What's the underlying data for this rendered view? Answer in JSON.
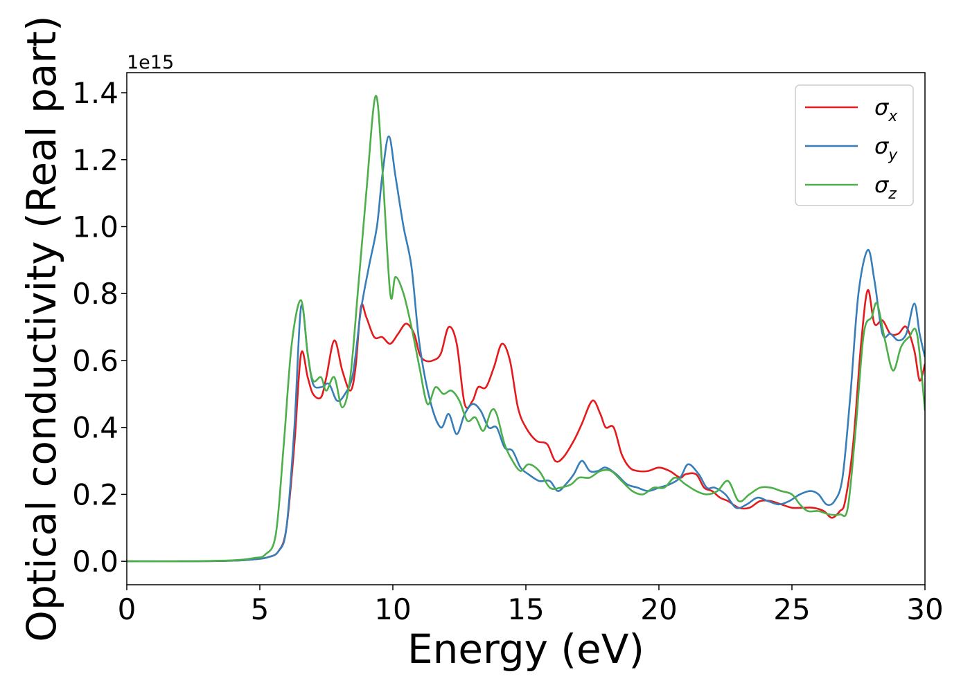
{
  "chart_data": {
    "type": "line",
    "title": "",
    "xlabel": "Energy (eV)",
    "ylabel": "Optical conductivity (Real part)",
    "y_offset_text": "1e15",
    "xlim": [
      0,
      30
    ],
    "ylim": [
      -0.07,
      1.46
    ],
    "xticks": [
      0,
      5,
      10,
      15,
      20,
      25,
      30
    ],
    "yticks": [
      0.0,
      0.2,
      0.4,
      0.6,
      0.8,
      1.0,
      1.2,
      1.4
    ],
    "ytick_labels": [
      "0.0",
      "0.2",
      "0.4",
      "0.6",
      "0.8",
      "1.0",
      "1.2",
      "1.4"
    ],
    "grid": false,
    "legend_position": "top-right",
    "series": [
      {
        "name": "σ",
        "subscript": "x",
        "color": "#e41a1c",
        "x": [
          0,
          2,
          4,
          4.8,
          5.3,
          5.7,
          6.0,
          6.3,
          6.55,
          6.8,
          7.0,
          7.3,
          7.5,
          7.8,
          8.1,
          8.4,
          8.6,
          8.8,
          9.0,
          9.3,
          9.6,
          9.9,
          10.2,
          10.5,
          10.8,
          11.0,
          11.2,
          11.5,
          11.8,
          12.1,
          12.4,
          12.7,
          13.0,
          13.2,
          13.5,
          13.8,
          14.1,
          14.4,
          14.7,
          15.0,
          15.4,
          15.8,
          16.1,
          16.4,
          16.8,
          17.1,
          17.5,
          17.8,
          18.0,
          18.3,
          18.6,
          18.9,
          19.2,
          19.6,
          20.0,
          20.4,
          20.8,
          21.0,
          21.4,
          21.7,
          22.0,
          22.3,
          22.6,
          23.0,
          23.4,
          23.8,
          24.2,
          24.6,
          25.0,
          25.4,
          25.8,
          26.2,
          26.5,
          26.8,
          27.0,
          27.3,
          27.6,
          27.85,
          28.1,
          28.4,
          28.7,
          29.0,
          29.3,
          29.6,
          29.8,
          30.0
        ],
        "values": [
          0,
          0.0,
          0.002,
          0.006,
          0.012,
          0.03,
          0.1,
          0.35,
          0.62,
          0.55,
          0.5,
          0.49,
          0.55,
          0.66,
          0.57,
          0.51,
          0.58,
          0.76,
          0.73,
          0.67,
          0.67,
          0.65,
          0.68,
          0.71,
          0.68,
          0.62,
          0.6,
          0.6,
          0.62,
          0.7,
          0.65,
          0.47,
          0.48,
          0.52,
          0.52,
          0.58,
          0.65,
          0.6,
          0.46,
          0.4,
          0.36,
          0.35,
          0.3,
          0.31,
          0.36,
          0.41,
          0.48,
          0.44,
          0.4,
          0.4,
          0.32,
          0.28,
          0.27,
          0.27,
          0.28,
          0.27,
          0.25,
          0.26,
          0.26,
          0.22,
          0.21,
          0.19,
          0.18,
          0.16,
          0.16,
          0.18,
          0.18,
          0.17,
          0.16,
          0.16,
          0.16,
          0.15,
          0.13,
          0.15,
          0.18,
          0.35,
          0.65,
          0.81,
          0.71,
          0.72,
          0.68,
          0.68,
          0.7,
          0.63,
          0.54,
          0.59
        ]
      },
      {
        "name": "σ",
        "subscript": "y",
        "color": "#377eb8",
        "x": [
          0,
          2,
          4,
          4.8,
          5.3,
          5.7,
          6.0,
          6.3,
          6.55,
          6.8,
          7.0,
          7.3,
          7.6,
          7.9,
          8.2,
          8.5,
          8.8,
          9.1,
          9.4,
          9.6,
          9.85,
          10.1,
          10.4,
          10.7,
          11.0,
          11.4,
          11.8,
          12.1,
          12.4,
          12.7,
          13.0,
          13.3,
          13.6,
          13.9,
          14.2,
          14.5,
          14.8,
          15.1,
          15.5,
          15.9,
          16.2,
          16.5,
          16.8,
          17.1,
          17.4,
          17.7,
          18.0,
          18.4,
          18.8,
          19.2,
          19.6,
          20.0,
          20.4,
          20.8,
          21.1,
          21.5,
          21.8,
          22.1,
          22.5,
          22.9,
          23.3,
          23.7,
          24.1,
          24.5,
          24.9,
          25.3,
          25.7,
          26.0,
          26.3,
          26.6,
          26.9,
          27.2,
          27.5,
          27.85,
          28.1,
          28.4,
          28.7,
          29.0,
          29.3,
          29.6,
          29.8,
          30.0
        ],
        "values": [
          0,
          0.0,
          0.002,
          0.006,
          0.012,
          0.03,
          0.1,
          0.4,
          0.76,
          0.62,
          0.53,
          0.52,
          0.53,
          0.48,
          0.5,
          0.56,
          0.75,
          0.88,
          1.0,
          1.15,
          1.27,
          1.15,
          1.0,
          0.88,
          0.65,
          0.48,
          0.4,
          0.44,
          0.38,
          0.44,
          0.47,
          0.45,
          0.4,
          0.4,
          0.34,
          0.33,
          0.28,
          0.26,
          0.24,
          0.24,
          0.21,
          0.23,
          0.26,
          0.3,
          0.27,
          0.27,
          0.28,
          0.26,
          0.23,
          0.22,
          0.21,
          0.22,
          0.23,
          0.25,
          0.29,
          0.26,
          0.22,
          0.22,
          0.2,
          0.16,
          0.17,
          0.19,
          0.18,
          0.17,
          0.18,
          0.2,
          0.21,
          0.2,
          0.17,
          0.18,
          0.25,
          0.5,
          0.8,
          0.93,
          0.84,
          0.68,
          0.68,
          0.66,
          0.68,
          0.77,
          0.68,
          0.61
        ]
      },
      {
        "name": "σ",
        "subscript": "z",
        "color": "#4daf4a",
        "x": [
          0,
          2,
          4,
          4.8,
          5.2,
          5.6,
          5.9,
          6.2,
          6.55,
          6.8,
          7.0,
          7.3,
          7.5,
          7.8,
          8.1,
          8.4,
          8.7,
          9.0,
          9.35,
          9.6,
          9.9,
          10.1,
          10.4,
          10.7,
          11.0,
          11.3,
          11.6,
          11.9,
          12.2,
          12.5,
          12.8,
          13.1,
          13.4,
          13.7,
          13.9,
          14.2,
          14.5,
          14.8,
          15.1,
          15.5,
          15.9,
          16.3,
          16.7,
          17.0,
          17.4,
          17.8,
          18.2,
          18.6,
          19.0,
          19.4,
          19.8,
          20.2,
          20.6,
          21.0,
          21.4,
          21.8,
          22.2,
          22.6,
          23.0,
          23.4,
          23.8,
          24.2,
          24.6,
          25.0,
          25.3,
          25.6,
          26.0,
          26.4,
          26.8,
          27.1,
          27.4,
          27.7,
          28.0,
          28.2,
          28.5,
          28.8,
          29.1,
          29.4,
          29.7,
          30.0
        ],
        "values": [
          0,
          0.0,
          0.003,
          0.01,
          0.02,
          0.08,
          0.35,
          0.65,
          0.78,
          0.62,
          0.54,
          0.55,
          0.51,
          0.55,
          0.46,
          0.55,
          0.82,
          1.1,
          1.39,
          1.18,
          0.8,
          0.85,
          0.8,
          0.7,
          0.58,
          0.47,
          0.52,
          0.5,
          0.51,
          0.48,
          0.42,
          0.43,
          0.39,
          0.45,
          0.44,
          0.35,
          0.3,
          0.27,
          0.29,
          0.27,
          0.22,
          0.22,
          0.23,
          0.25,
          0.25,
          0.27,
          0.27,
          0.24,
          0.21,
          0.2,
          0.22,
          0.22,
          0.25,
          0.23,
          0.21,
          0.2,
          0.21,
          0.24,
          0.18,
          0.2,
          0.22,
          0.22,
          0.21,
          0.2,
          0.17,
          0.15,
          0.15,
          0.14,
          0.14,
          0.16,
          0.4,
          0.68,
          0.73,
          0.77,
          0.66,
          0.57,
          0.64,
          0.67,
          0.68,
          0.45
        ]
      }
    ]
  }
}
